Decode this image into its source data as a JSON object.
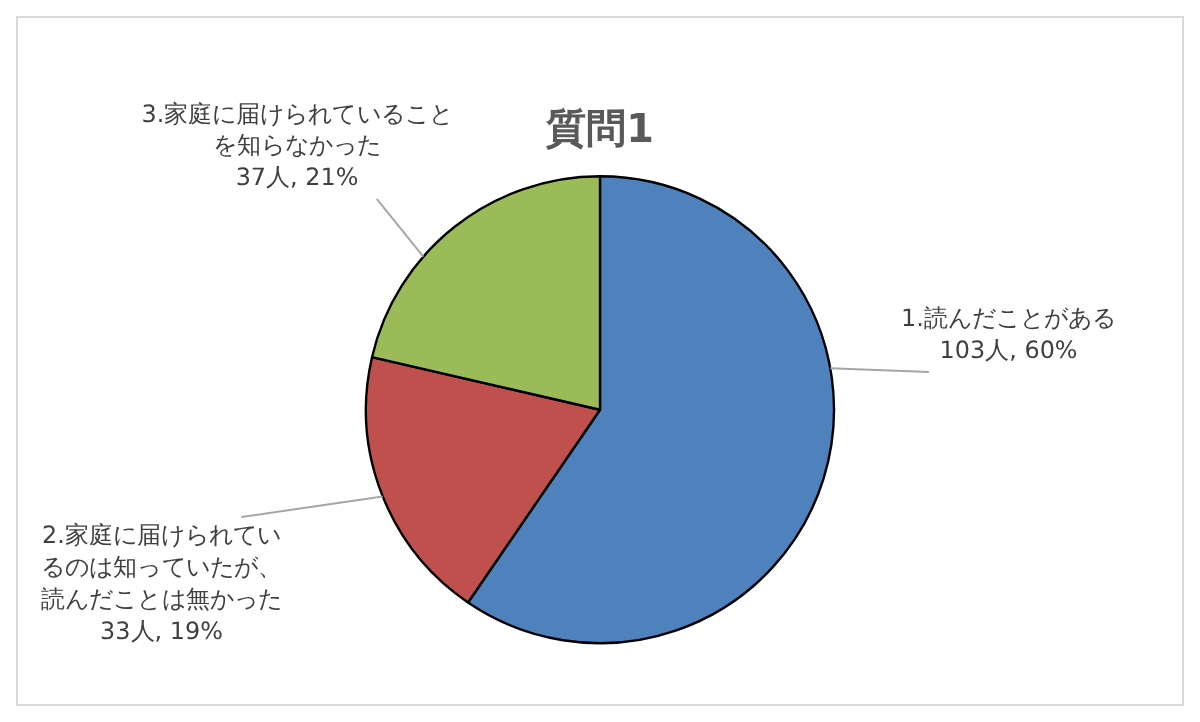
{
  "chart_data": {
    "type": "pie",
    "title": "質問1",
    "categories": [
      "1.読んだことがある",
      "2.家庭に届けられているのは知っていたが、読んだことは無かった",
      "3.家庭に届けられていることを知らなかった"
    ],
    "values": [
      103,
      33,
      37
    ],
    "value_labels": [
      "103人, 60%",
      "33人, 19%",
      "37人, 21%"
    ],
    "colors": [
      "#4f81bd",
      "#c0504d",
      "#9bbb59"
    ]
  }
}
